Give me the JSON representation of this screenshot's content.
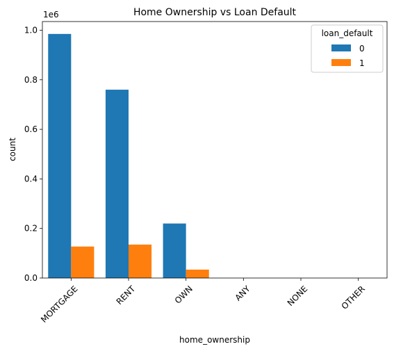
{
  "chart_data": {
    "type": "bar",
    "title": "Home Ownership vs Loan Default",
    "xlabel": "home_ownership",
    "ylabel": "count",
    "y_offset_label": "1e6",
    "categories": [
      "MORTGAGE",
      "RENT",
      "OWN",
      "ANY",
      "NONE",
      "OTHER"
    ],
    "series": [
      {
        "name": "0",
        "color": "#1f77b4",
        "values": [
          985000,
          760000,
          220000,
          0,
          0,
          0
        ]
      },
      {
        "name": "1",
        "color": "#ff7f0e",
        "values": [
          127000,
          135000,
          34000,
          0,
          0,
          0
        ]
      }
    ],
    "ylim": [
      0,
      1035000
    ],
    "yticks": [
      0,
      200000,
      400000,
      600000,
      800000,
      1000000
    ],
    "ytick_labels": [
      "0.0",
      "0.2",
      "0.4",
      "0.6",
      "0.8",
      "1.0"
    ],
    "legend": {
      "title": "loan_default",
      "position": "top-right"
    },
    "grid": false
  }
}
